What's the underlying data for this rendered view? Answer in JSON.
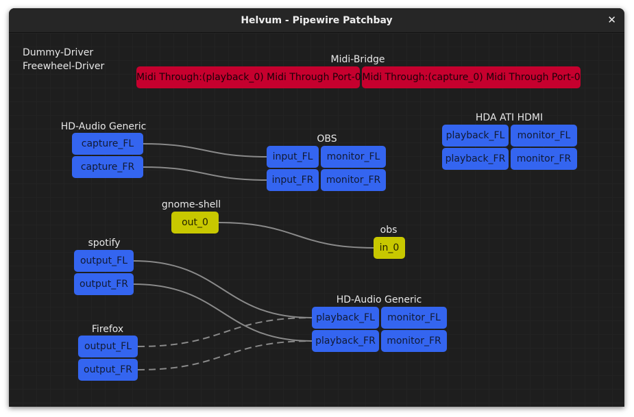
{
  "window": {
    "title": "Helvum - Pipewire Patchbay",
    "close_icon": "close-icon"
  },
  "colors": {
    "audio": "#3465f0",
    "midi": "#c6002e",
    "video": "#c8c800",
    "link": "#8a8a8a"
  },
  "standalone_nodes": [
    "Dummy-Driver",
    "Freewheel-Driver"
  ],
  "nodes": [
    {
      "id": "midi",
      "name": "Midi-Bridge",
      "ports": [
        {
          "id": "midi_pb",
          "label": "Midi Through:(playback_0) Midi Through Port-0",
          "type": "midi"
        },
        {
          "id": "midi_cap",
          "label": "Midi Through:(capture_0) Midi Through Port-0",
          "type": "midi"
        }
      ]
    },
    {
      "id": "hda_in",
      "name": "HD-Audio Generic",
      "ports": [
        {
          "id": "cap_fl",
          "label": "capture_FL",
          "type": "audio"
        },
        {
          "id": "cap_fr",
          "label": "capture_FR",
          "type": "audio"
        }
      ]
    },
    {
      "id": "obs",
      "name": "OBS",
      "ports": [
        {
          "id": "obs_in_fl",
          "label": "input_FL",
          "type": "audio"
        },
        {
          "id": "obs_mon_fl",
          "label": "monitor_FL",
          "type": "audio"
        },
        {
          "id": "obs_in_fr",
          "label": "input_FR",
          "type": "audio"
        },
        {
          "id": "obs_mon_fr",
          "label": "monitor_FR",
          "type": "audio"
        }
      ]
    },
    {
      "id": "hdmi",
      "name": "HDA ATI HDMI",
      "ports": [
        {
          "id": "hdmi_pb_fl",
          "label": "playback_FL",
          "type": "audio"
        },
        {
          "id": "hdmi_mon_fl",
          "label": "monitor_FL",
          "type": "audio"
        },
        {
          "id": "hdmi_pb_fr",
          "label": "playback_FR",
          "type": "audio"
        },
        {
          "id": "hdmi_mon_fr",
          "label": "monitor_FR",
          "type": "audio"
        }
      ]
    },
    {
      "id": "gnome",
      "name": "gnome-shell",
      "ports": [
        {
          "id": "gs_out",
          "label": "out_0",
          "type": "video"
        }
      ]
    },
    {
      "id": "obsv",
      "name": "obs",
      "ports": [
        {
          "id": "obs_vin",
          "label": "in_0",
          "type": "video"
        }
      ]
    },
    {
      "id": "spotify",
      "name": "spotify",
      "ports": [
        {
          "id": "sp_fl",
          "label": "output_FL",
          "type": "audio"
        },
        {
          "id": "sp_fr",
          "label": "output_FR",
          "type": "audio"
        }
      ]
    },
    {
      "id": "hda_out",
      "name": "HD-Audio Generic",
      "ports": [
        {
          "id": "out_pb_fl",
          "label": "playback_FL",
          "type": "audio"
        },
        {
          "id": "out_mon_fl",
          "label": "monitor_FL",
          "type": "audio"
        },
        {
          "id": "out_pb_fr",
          "label": "playback_FR",
          "type": "audio"
        },
        {
          "id": "out_mon_fr",
          "label": "monitor_FR",
          "type": "audio"
        }
      ]
    },
    {
      "id": "firefox",
      "name": "Firefox",
      "ports": [
        {
          "id": "ff_fl",
          "label": "output_FL",
          "type": "audio"
        },
        {
          "id": "ff_fr",
          "label": "output_FR",
          "type": "audio"
        }
      ]
    }
  ],
  "links": [
    {
      "from": "cap_fl",
      "to": "obs_in_fl",
      "dashed": false
    },
    {
      "from": "cap_fr",
      "to": "obs_in_fr",
      "dashed": false
    },
    {
      "from": "gs_out",
      "to": "obs_vin",
      "dashed": false
    },
    {
      "from": "sp_fl",
      "to": "out_pb_fl",
      "dashed": false
    },
    {
      "from": "sp_fr",
      "to": "out_pb_fr",
      "dashed": false
    },
    {
      "from": "ff_fl",
      "to": "out_pb_fl",
      "dashed": true
    },
    {
      "from": "ff_fr",
      "to": "out_pb_fr",
      "dashed": true
    }
  ]
}
